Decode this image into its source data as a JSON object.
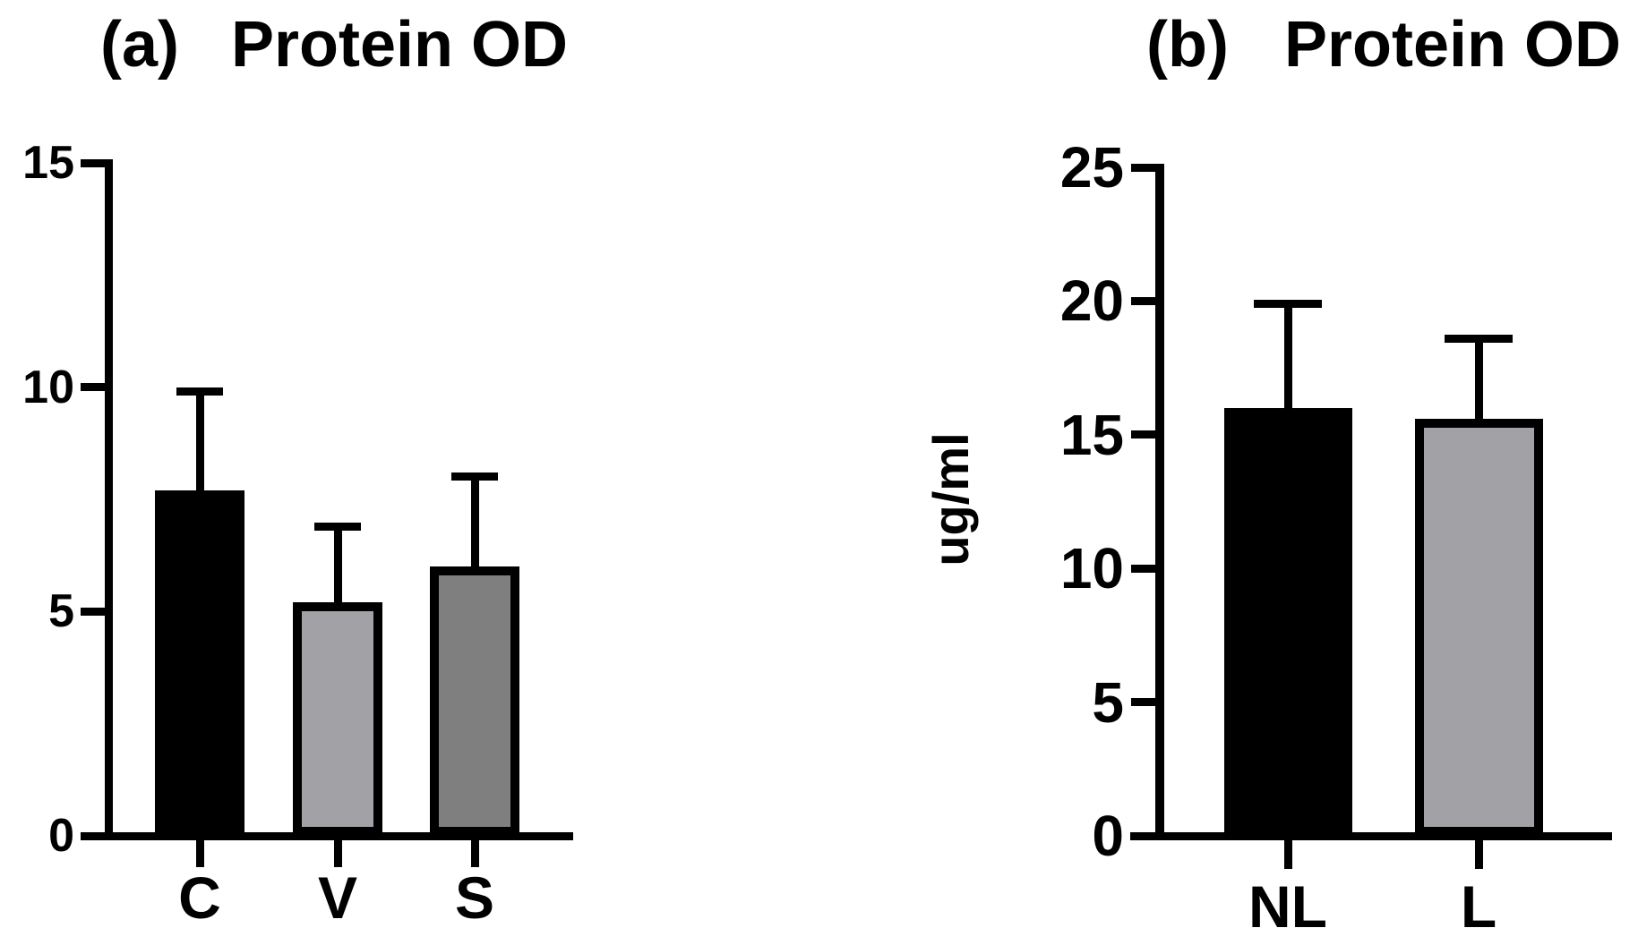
{
  "figure": {
    "background": "#ffffff",
    "axis_color": "#000000"
  },
  "chart_data": [
    {
      "type": "bar",
      "panel": "(a)",
      "title": "Protein OD",
      "xlabel": "",
      "ylabel": "",
      "ylim": [
        0,
        15
      ],
      "yticks": [
        0,
        5,
        10,
        15
      ],
      "categories": [
        "C",
        "V",
        "S"
      ],
      "values": [
        7.7,
        5.2,
        6.0
      ],
      "errors_up": [
        2.2,
        1.7,
        2.0
      ],
      "bar_colors": [
        "#000000",
        "#a1a1a6",
        "#7f7f7f"
      ],
      "bar_border_color": "#000000",
      "error_bar_color": "#000000",
      "grid": false,
      "legend": "none"
    },
    {
      "type": "bar",
      "panel": "(b)",
      "title": "Protein OD",
      "xlabel": "",
      "ylabel": "ug/ml",
      "ylim": [
        0,
        25
      ],
      "yticks": [
        0,
        5,
        10,
        15,
        20,
        25
      ],
      "categories": [
        "NL",
        "L"
      ],
      "values": [
        16.0,
        15.6
      ],
      "errors_up": [
        3.9,
        3.0
      ],
      "bar_colors": [
        "#000000",
        "#a1a1a6"
      ],
      "bar_border_color": "#000000",
      "error_bar_color": "#000000",
      "grid": false,
      "legend": "none"
    }
  ]
}
